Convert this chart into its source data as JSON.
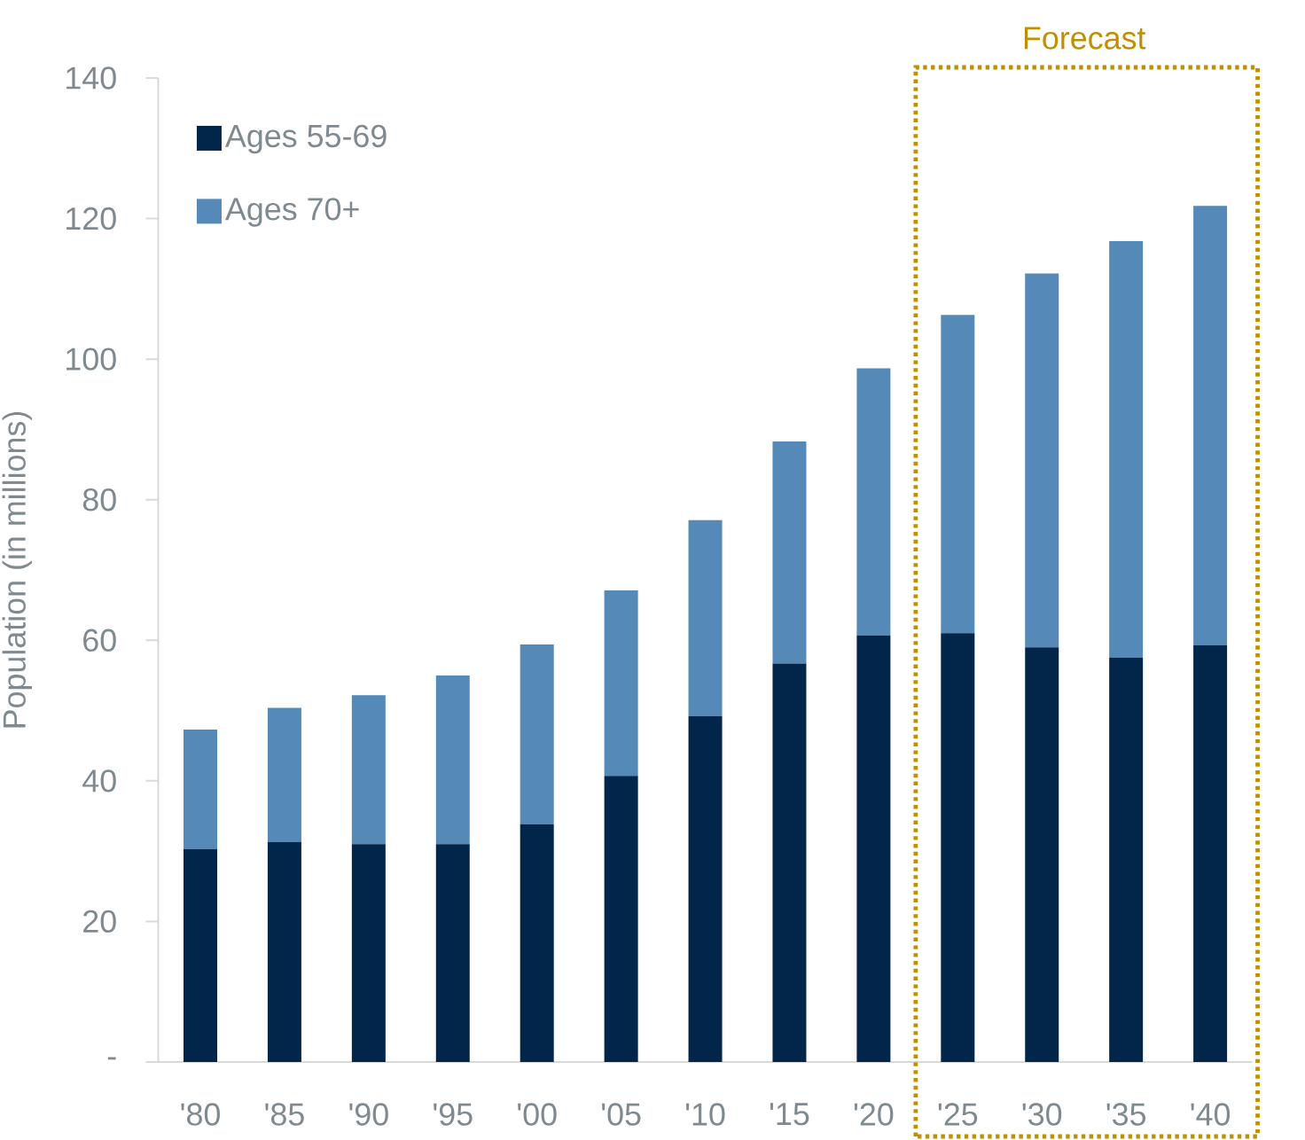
{
  "chart_data": {
    "type": "bar",
    "stacked": true,
    "ylabel": "Population (in millions)",
    "categories": [
      "'80",
      "'85",
      "'90",
      "'95",
      "'00",
      "'05",
      "'10",
      "'15",
      "'20",
      "'25",
      "'30",
      "'35",
      "'40"
    ],
    "series": [
      {
        "name": "Ages 55-69",
        "color": "#02264a",
        "values": [
          30.3,
          31.3,
          31.0,
          31.0,
          33.8,
          40.7,
          49.2,
          56.7,
          60.7,
          61.0,
          59.0,
          57.5,
          59.3
        ]
      },
      {
        "name": "Ages 70+",
        "color": "#5589b8",
        "values": [
          17.0,
          19.1,
          21.2,
          24.0,
          25.6,
          26.4,
          27.9,
          31.6,
          38.0,
          45.3,
          53.2,
          59.3,
          62.5
        ]
      }
    ],
    "ylim": [
      0,
      140
    ],
    "yticks": [
      {
        "value": 0,
        "label": "-"
      },
      20,
      40,
      60,
      80,
      100,
      120,
      140
    ],
    "annotations": [
      "Forecast"
    ],
    "legend": "top left",
    "grid": false
  }
}
